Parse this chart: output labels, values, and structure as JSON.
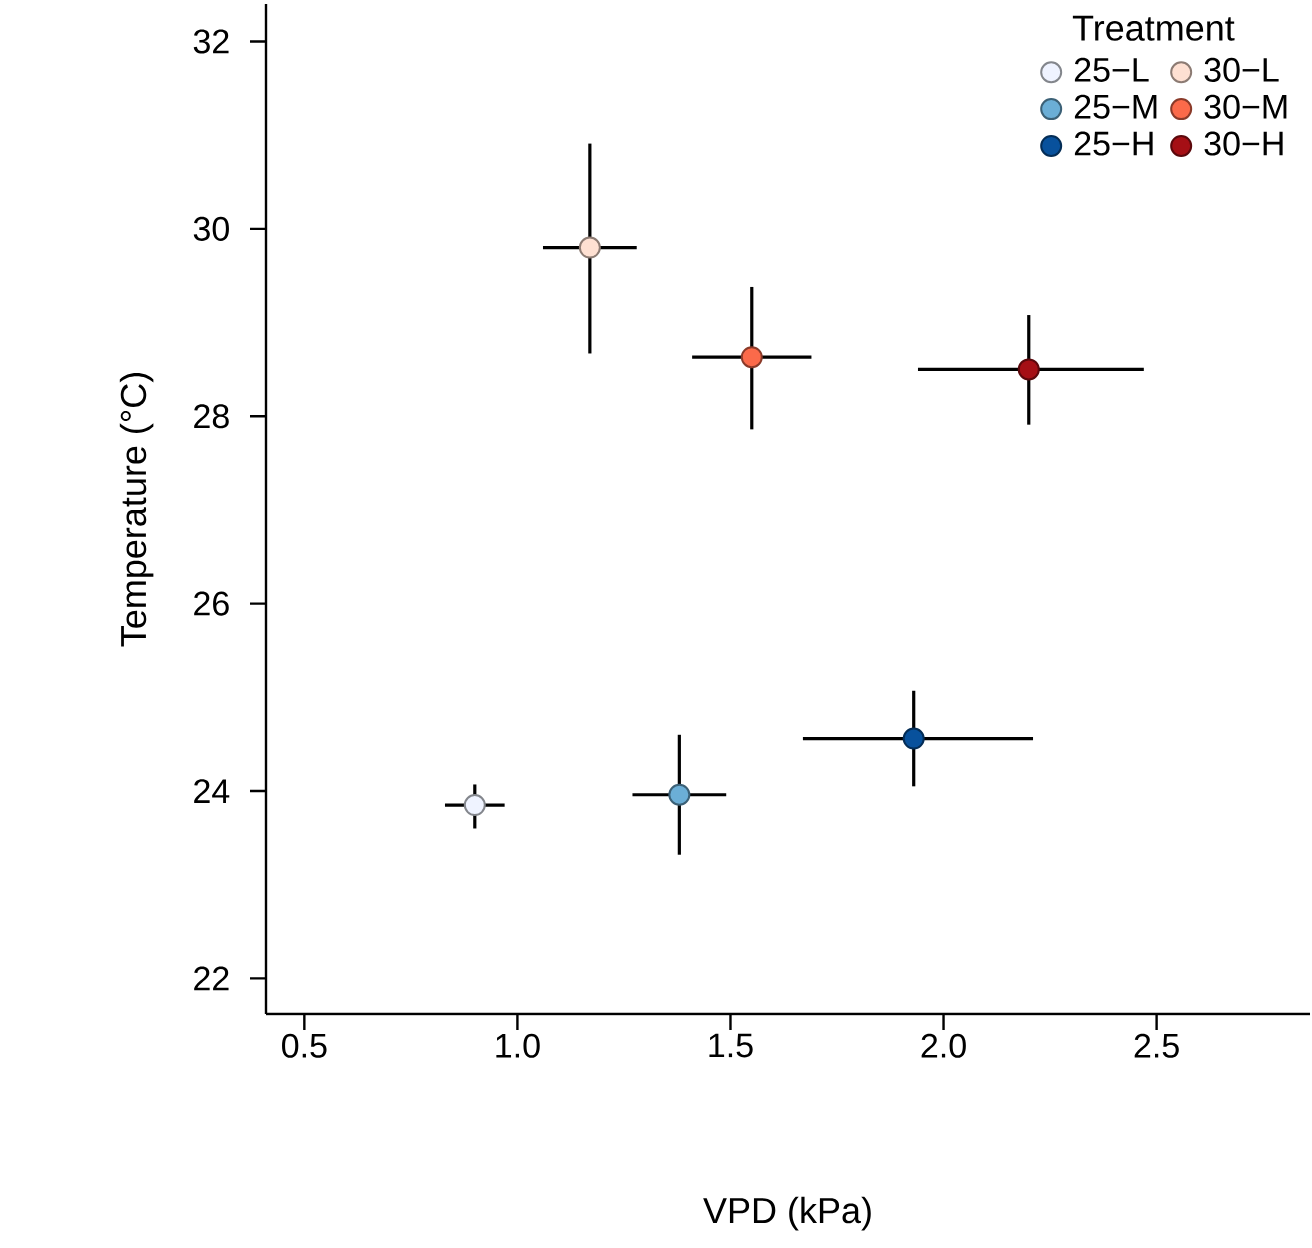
{
  "chart_data": {
    "type": "scatter",
    "xlabel": "VPD (kPa)",
    "ylabel": "Temperature (°C)",
    "legend_title": "Treatment",
    "legend": "top right",
    "marker": "circle",
    "xlim": [
      0.41,
      2.86
    ],
    "ylim": [
      21.62,
      32.4
    ],
    "xticks": [
      0.5,
      {
        "value": 1,
        "label": "1.0"
      },
      1.5,
      {
        "value": 2,
        "label": "2.0"
      },
      2.5
    ],
    "yticks": [
      22,
      24,
      26,
      28,
      30,
      32
    ],
    "series": [
      {
        "name": "25−L",
        "color": "#eff3ff",
        "x": [
          0.9
        ],
        "values": [
          23.85
        ],
        "errors": [
          [
            23.6,
            24.07
          ]
        ],
        "xerrors": [
          [
            0.83,
            0.97
          ]
        ]
      },
      {
        "name": "25−M",
        "color": "#6baed6",
        "x": [
          1.38
        ],
        "values": [
          23.96
        ],
        "errors": [
          [
            23.32,
            24.6
          ]
        ],
        "xerrors": [
          [
            1.27,
            1.49
          ]
        ]
      },
      {
        "name": "25−H",
        "color": "#08519c",
        "x": [
          1.93
        ],
        "values": [
          24.56
        ],
        "errors": [
          [
            24.05,
            25.07
          ]
        ],
        "xerrors": [
          [
            1.67,
            2.21
          ]
        ]
      },
      {
        "name": "30−L",
        "color": "#fee0d2",
        "x": [
          1.17
        ],
        "values": [
          29.8
        ],
        "errors": [
          [
            28.67,
            30.91
          ]
        ],
        "xerrors": [
          [
            1.06,
            1.28
          ]
        ]
      },
      {
        "name": "30−M",
        "color": "#fb6a4a",
        "x": [
          1.55
        ],
        "values": [
          28.63
        ],
        "errors": [
          [
            27.86,
            29.38
          ]
        ],
        "xerrors": [
          [
            1.41,
            1.69
          ]
        ]
      },
      {
        "name": "30−H",
        "color": "#a50f15",
        "x": [
          2.2
        ],
        "values": [
          28.5
        ],
        "errors": [
          [
            27.91,
            29.08
          ]
        ],
        "xerrors": [
          [
            1.94,
            2.47
          ]
        ]
      }
    ]
  }
}
